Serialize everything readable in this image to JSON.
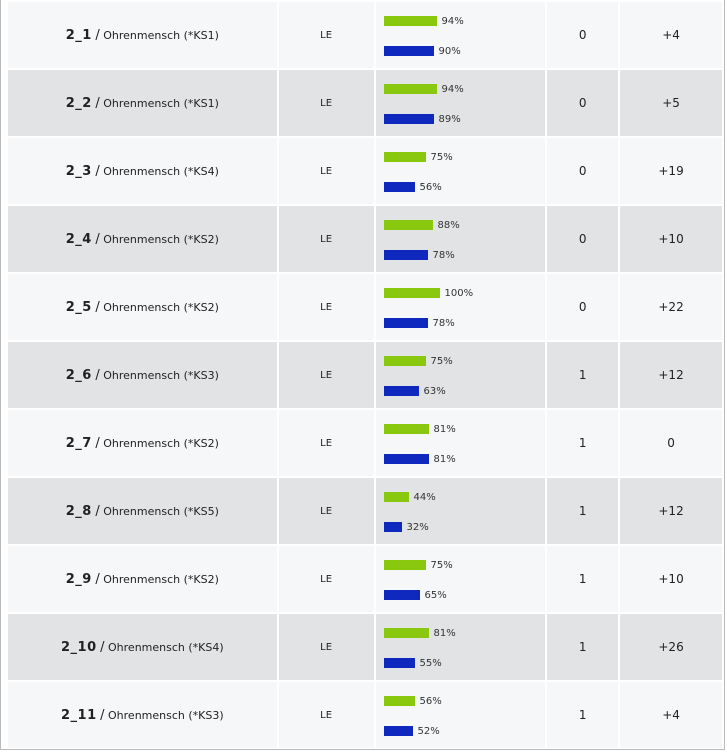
{
  "colors": {
    "green_bar": "#8ac70f",
    "blue_bar": "#0f29bf",
    "row_odd": "#f6f7f9",
    "row_even": "#e2e3e5"
  },
  "rows": [
    {
      "id": "2_1",
      "name": "Ohrenmensch (*KS1)",
      "type": "LE",
      "green": 94,
      "blue": 90,
      "col1": "0",
      "col2": "+4"
    },
    {
      "id": "2_2",
      "name": "Ohrenmensch (*KS1)",
      "type": "LE",
      "green": 94,
      "blue": 89,
      "col1": "0",
      "col2": "+5"
    },
    {
      "id": "2_3",
      "name": "Ohrenmensch (*KS4)",
      "type": "LE",
      "green": 75,
      "blue": 56,
      "col1": "0",
      "col2": "+19"
    },
    {
      "id": "2_4",
      "name": "Ohrenmensch (*KS2)",
      "type": "LE",
      "green": 88,
      "blue": 78,
      "col1": "0",
      "col2": "+10"
    },
    {
      "id": "2_5",
      "name": "Ohrenmensch (*KS2)",
      "type": "LE",
      "green": 100,
      "blue": 78,
      "col1": "0",
      "col2": "+22"
    },
    {
      "id": "2_6",
      "name": "Ohrenmensch (*KS3)",
      "type": "LE",
      "green": 75,
      "blue": 63,
      "col1": "1",
      "col2": "+12"
    },
    {
      "id": "2_7",
      "name": "Ohrenmensch (*KS2)",
      "type": "LE",
      "green": 81,
      "blue": 81,
      "col1": "1",
      "col2": "0"
    },
    {
      "id": "2_8",
      "name": "Ohrenmensch (*KS5)",
      "type": "LE",
      "green": 44,
      "blue": 32,
      "col1": "1",
      "col2": "+12"
    },
    {
      "id": "2_9",
      "name": "Ohrenmensch (*KS2)",
      "type": "LE",
      "green": 75,
      "blue": 65,
      "col1": "1",
      "col2": "+10"
    },
    {
      "id": "2_10",
      "name": "Ohrenmensch (*KS4)",
      "type": "LE",
      "green": 81,
      "blue": 55,
      "col1": "1",
      "col2": "+26"
    },
    {
      "id": "2_11",
      "name": "Ohrenmensch (*KS3)",
      "type": "LE",
      "green": 56,
      "blue": 52,
      "col1": "1",
      "col2": "+4"
    }
  ]
}
